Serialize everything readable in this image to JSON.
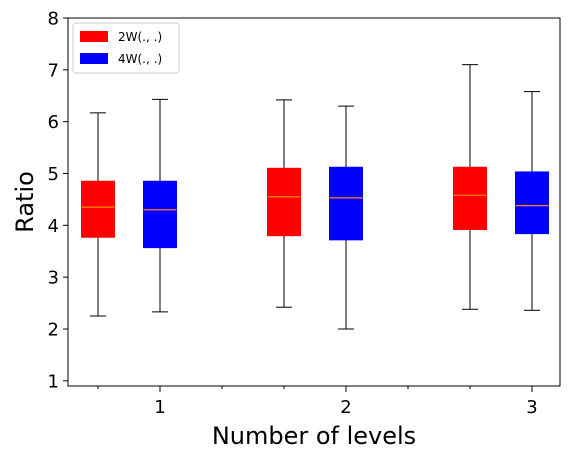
{
  "chart_data": {
    "type": "boxplot",
    "title": "",
    "xlabel": "Number of levels",
    "ylabel": "Ratio",
    "ylim": [
      0.9,
      8.0
    ],
    "yticks": [
      "1",
      "2",
      "3",
      "4",
      "5",
      "6",
      "7",
      "8"
    ],
    "categories": [
      "1",
      "2",
      "3"
    ],
    "legend_position": "top-left",
    "grid": false,
    "series": [
      {
        "name": "2W(., .)",
        "color": "#ff0000",
        "median_color": "#ff7f0e",
        "boxes": [
          {
            "category": "1",
            "whisker_low": 2.25,
            "q1": 3.77,
            "median": 4.35,
            "q3": 4.85,
            "whisker_high": 6.17
          },
          {
            "category": "2",
            "whisker_low": 2.42,
            "q1": 3.8,
            "median": 4.55,
            "q3": 5.1,
            "whisker_high": 6.42
          },
          {
            "category": "3",
            "whisker_low": 2.38,
            "q1": 3.92,
            "median": 4.58,
            "q3": 5.12,
            "whisker_high": 7.1
          }
        ]
      },
      {
        "name": "4W(., .)",
        "color": "#0000ff",
        "median_color": "#ff7f0e",
        "boxes": [
          {
            "category": "1",
            "whisker_low": 2.33,
            "q1": 3.57,
            "median": 4.3,
            "q3": 4.85,
            "whisker_high": 6.43
          },
          {
            "category": "2",
            "whisker_low": 2.0,
            "q1": 3.72,
            "median": 4.53,
            "q3": 5.12,
            "whisker_high": 6.3
          },
          {
            "category": "3",
            "whisker_low": 2.36,
            "q1": 3.84,
            "median": 4.38,
            "q3": 5.03,
            "whisker_high": 6.58
          }
        ]
      }
    ]
  }
}
